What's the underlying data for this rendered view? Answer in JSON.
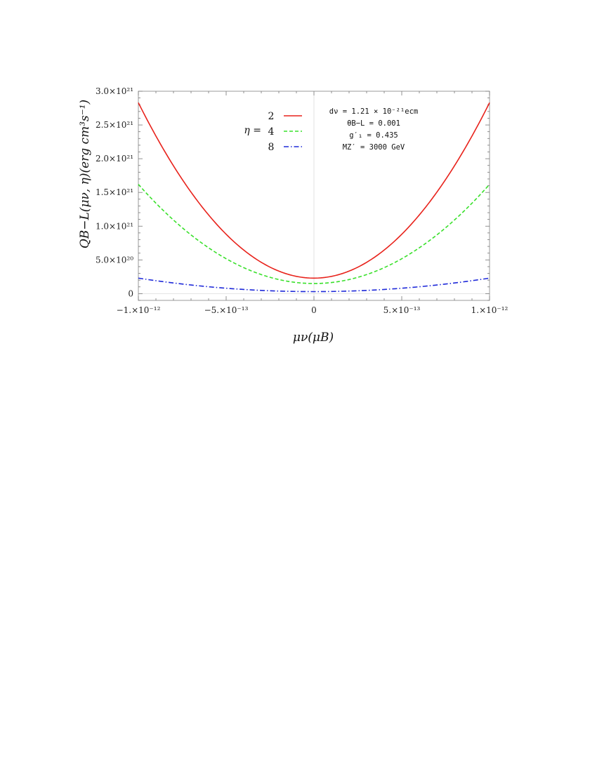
{
  "chart_data": {
    "type": "line",
    "xlabel": "μν(μB)",
    "ylabel": "QB−L(μν, η)(erg cm³s⁻¹)",
    "xlim": [
      -1e-12,
      1e-12
    ],
    "ylim": [
      -1e+20,
      3e+21
    ],
    "x_ticks": [
      {
        "value": -1e-12,
        "label": "−1.×10⁻¹²"
      },
      {
        "value": -5e-13,
        "label": "−5.×10⁻¹³"
      },
      {
        "value": 0,
        "label": "0"
      },
      {
        "value": 5e-13,
        "label": "5.×10⁻¹³"
      },
      {
        "value": 1e-12,
        "label": "1.×10⁻¹²"
      }
    ],
    "y_ticks": [
      {
        "value": 0,
        "label": "0"
      },
      {
        "value": 5e+20,
        "label": "5.0×10²⁰"
      },
      {
        "value": 1e+21,
        "label": "1.0×10²¹"
      },
      {
        "value": 1.5e+21,
        "label": "1.5×10²¹"
      },
      {
        "value": 2e+21,
        "label": "2.0×10²¹"
      },
      {
        "value": 2.5e+21,
        "label": "2.5×10²¹"
      },
      {
        "value": 3e+21,
        "label": "3.0×10²¹"
      }
    ],
    "legend_title": "η =",
    "legend_position": "top-center",
    "grid": false,
    "series": [
      {
        "name": "2",
        "color": "#e8221b",
        "dash": "solid",
        "min": 2.3e+20,
        "max": 2.83e+21
      },
      {
        "name": "4",
        "color": "#39e02b",
        "dash": "dashed",
        "min": 1.5e+20,
        "max": 1.62e+21
      },
      {
        "name": "8",
        "color": "#1f2ad9",
        "dash": "dashdot",
        "min": 3e+19,
        "max": 2.3e+20
      }
    ],
    "annotations": [
      "dν = 1.21 × 10⁻²¹ecm",
      "θB−L = 0.001",
      "g′₁ = 0.435",
      "MZ′ = 3000 GeV"
    ]
  }
}
